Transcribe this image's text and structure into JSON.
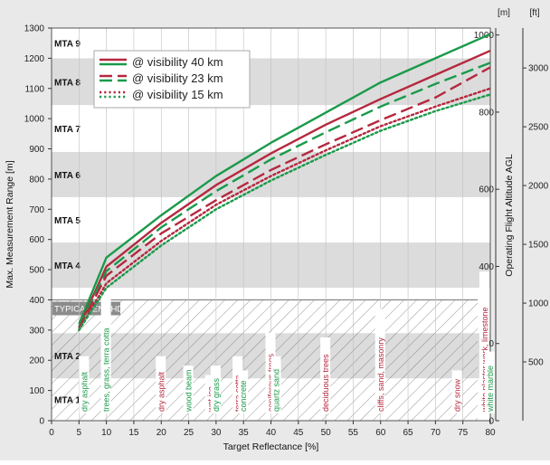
{
  "chart_data": {
    "type": "line",
    "xlabel": "Target Reflectance [%]",
    "ylabel": "Max. Measurement Range [m]",
    "y2label": "Operating Flight Altitude AGL",
    "y2_unit_m": "[m]",
    "y2_unit_ft": "[ft]",
    "xlim": [
      0,
      80
    ],
    "ylim": [
      0,
      1300
    ],
    "x_ticks": [
      0,
      5,
      10,
      15,
      20,
      25,
      30,
      35,
      40,
      45,
      50,
      55,
      60,
      65,
      70,
      75,
      80
    ],
    "y_ticks": [
      0,
      100,
      200,
      300,
      400,
      500,
      600,
      700,
      800,
      900,
      1000,
      1100,
      1200,
      1300
    ],
    "y2_ticks_m": [
      0,
      200,
      400,
      600,
      800,
      1000
    ],
    "y2_ticks_ft": [
      500,
      1000,
      1500,
      2000,
      2500,
      3000
    ],
    "mta_zones": [
      {
        "label": "MTA 1",
        "from": 0,
        "to": 140
      },
      {
        "label": "MTA 2",
        "from": 140,
        "to": 290
      },
      {
        "label": "MTA 3",
        "from": 290,
        "to": 440
      },
      {
        "label": "MTA 4",
        "from": 440,
        "to": 590
      },
      {
        "label": "MTA 5",
        "from": 590,
        "to": 740
      },
      {
        "label": "MTA 6",
        "from": 740,
        "to": 890
      },
      {
        "label": "MTA 7",
        "from": 890,
        "to": 1045
      },
      {
        "label": "MTA 8",
        "from": 1045,
        "to": 1200
      },
      {
        "label": "MTA 9",
        "from": 1200,
        "to": 1300
      }
    ],
    "enohd_label": "TYPICAL ENOHD",
    "enohd_level": 400,
    "legend": [
      "@ visibility 40 km",
      "@ visibility 23 km",
      "@ visibility 15 km"
    ],
    "colors": {
      "red": "#b5283e",
      "green": "#1a9a4a"
    },
    "series": [
      {
        "name": "@ visibility 40 km",
        "color": "#1a9a4a",
        "style": "solid",
        "x": [
          5,
          10,
          20,
          30,
          40,
          50,
          60,
          70,
          80
        ],
        "y": [
          320,
          540,
          680,
          810,
          920,
          1020,
          1120,
          1200,
          1280
        ]
      },
      {
        "name": "@ visibility 40 km",
        "color": "#b5283e",
        "style": "solid",
        "x": [
          5,
          10,
          20,
          30,
          40,
          50,
          60,
          70,
          80
        ],
        "y": [
          310,
          510,
          655,
          780,
          885,
          980,
          1065,
          1145,
          1225
        ]
      },
      {
        "name": "@ visibility 23 km",
        "color": "#1a9a4a",
        "style": "dashed",
        "x": [
          5,
          10,
          20,
          30,
          40,
          50,
          60,
          70,
          80
        ],
        "y": [
          310,
          495,
          640,
          760,
          865,
          955,
          1040,
          1115,
          1185
        ]
      },
      {
        "name": "@ visibility 23 km",
        "color": "#b5283e",
        "style": "dashed",
        "x": [
          5,
          10,
          20,
          30,
          40,
          50,
          60,
          70,
          80
        ],
        "y": [
          305,
          480,
          620,
          730,
          830,
          915,
          995,
          1070,
          1170
        ]
      },
      {
        "name": "@ visibility 15 km",
        "color": "#b5283e",
        "style": "dotted",
        "x": [
          5,
          10,
          20,
          30,
          40,
          50,
          60,
          70,
          80
        ],
        "y": [
          300,
          455,
          595,
          715,
          810,
          895,
          975,
          1040,
          1100
        ]
      },
      {
        "name": "@ visibility 15 km",
        "color": "#1a9a4a",
        "style": "dotted",
        "x": [
          5,
          10,
          20,
          30,
          40,
          50,
          60,
          70,
          80
        ],
        "y": [
          300,
          440,
          580,
          700,
          795,
          880,
          960,
          1025,
          1080
        ]
      }
    ],
    "annotations": [
      {
        "text": "dry asphalt",
        "x": 6,
        "color": "#1a9a4a"
      },
      {
        "text": "trees, grass, terra cotta",
        "x": 10,
        "color": "#1a9a4a"
      },
      {
        "text": "dry asphalt",
        "x": 20,
        "color": "#b5283e"
      },
      {
        "text": "wood beam",
        "x": 25,
        "color": "#1a9a4a"
      },
      {
        "text": "wet ice",
        "x": 29,
        "color": "#b5283e"
      },
      {
        "text": "dry grass",
        "x": 30,
        "color": "#1a9a4a"
      },
      {
        "text": "terra cotta",
        "x": 34,
        "color": "#b5283e"
      },
      {
        "text": "concrete",
        "x": 35,
        "color": "#1a9a4a"
      },
      {
        "text": "coniferous trees",
        "x": 40,
        "color": "#b5283e"
      },
      {
        "text": "quartz sand",
        "x": 41,
        "color": "#1a9a4a"
      },
      {
        "text": "deciduous trees",
        "x": 50,
        "color": "#b5283e"
      },
      {
        "text": "cliffs, sand, masonry",
        "x": 60,
        "color": "#b5283e"
      },
      {
        "text": "dry snow",
        "x": 74,
        "color": "#b5283e"
      },
      {
        "text": "white plaster work, limestone",
        "x": 79,
        "color": "#b5283e"
      },
      {
        "text": "white marble",
        "x": 80,
        "color": "#1a9a4a"
      }
    ]
  }
}
